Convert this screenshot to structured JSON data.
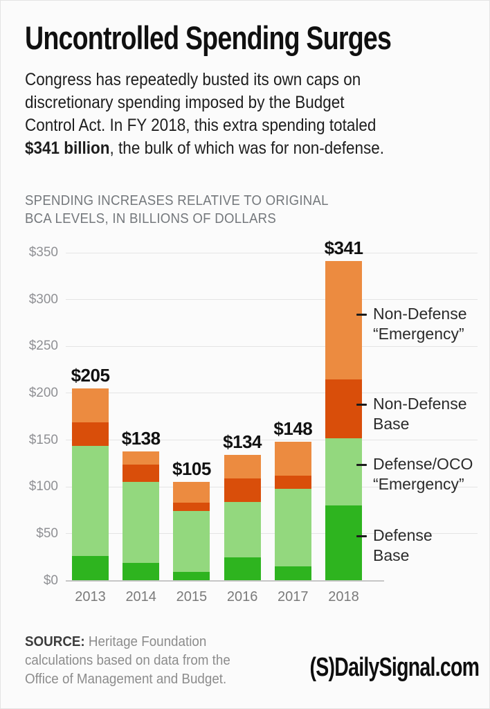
{
  "header": {
    "title": "Uncontrolled Spending Surges",
    "intro_lines": [
      "Congress has repeatedly busted its own caps on",
      "discretionary spending imposed by the Budget",
      "Control Act. In FY 2018, this extra spending totaled"
    ],
    "intro_bold": "$341 billion",
    "intro_after": ", the bulk of which was for non-defense."
  },
  "chart_data": {
    "type": "bar",
    "stacked": true,
    "title_lines": [
      "SPENDING INCREASES RELATIVE TO ORIGINAL",
      "BCA LEVELS, IN BILLIONS OF DOLLARS"
    ],
    "xlabel": "",
    "ylabel": "Billions of dollars",
    "categories": [
      "2013",
      "2014",
      "2015",
      "2016",
      "2017",
      "2018"
    ],
    "series": [
      {
        "key": "defense-base",
        "name": "Defense Base",
        "color": "#2eb41f",
        "values": [
          26,
          19,
          9,
          25,
          15,
          80
        ]
      },
      {
        "key": "defense-oco-emergency",
        "name": "Defense/OCO “Emergency”",
        "color": "#93d87e",
        "values": [
          118,
          86,
          65,
          59,
          83,
          72
        ]
      },
      {
        "key": "non-defense-base",
        "name": "Non-Defense Base",
        "color": "#d94e0a",
        "values": [
          25,
          19,
          9,
          25,
          14,
          63
        ]
      },
      {
        "key": "non-defense-emergency",
        "name": "Non-Defense “Emergency”",
        "color": "#ec8b40",
        "values": [
          36,
          14,
          22,
          25,
          36,
          126
        ]
      }
    ],
    "totals": [
      205,
      138,
      105,
      134,
      148,
      341
    ],
    "total_labels": [
      "$205",
      "$138",
      "$105",
      "$134",
      "$148",
      "$341"
    ],
    "ylim": [
      0,
      350
    ],
    "ytick_step": 50,
    "ytick_labels": [
      "$0",
      "$50",
      "$100",
      "$150",
      "$200",
      "$250",
      "$300",
      "$350"
    ],
    "grid": true,
    "legend_position": "right-annotations",
    "annotations": [
      {
        "key": "non-defense-emergency",
        "label_lines": [
          "Non-Defense",
          "“Emergency”"
        ],
        "y_value": 284
      },
      {
        "key": "non-defense-base",
        "label_lines": [
          "Non-Defense",
          "Base"
        ],
        "y_value": 188
      },
      {
        "key": "defense-oco-emergency",
        "label_lines": [
          "Defense/OCO",
          "“Emergency”"
        ],
        "y_value": 123.5
      },
      {
        "key": "defense-base",
        "label_lines": [
          "Defense",
          "Base"
        ],
        "y_value": 47.5
      }
    ]
  },
  "footer": {
    "source_label": "SOURCE:",
    "source_rest_line1": " Heritage Foundation",
    "source_line2": "calculations based on data from the",
    "source_line3": "Office of Management and Budget.",
    "logo_text": "(S)DailySignal.com"
  }
}
